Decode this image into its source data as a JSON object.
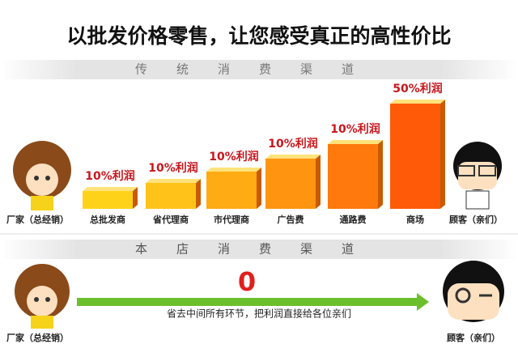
{
  "title": "以批发价格零售，让您感受真正的高性价比",
  "traditional": {
    "heading": "传统消费渠道",
    "maker": "厂家（总经销）",
    "customer": "顾客（亲们）",
    "stages": [
      {
        "label": "总批发商",
        "profit": "10%利润"
      },
      {
        "label": "省代理商",
        "profit": "10%利润"
      },
      {
        "label": "市代理商",
        "profit": "10%利润"
      },
      {
        "label": "广告费",
        "profit": "10%利润"
      },
      {
        "label": "通路费",
        "profit": "10%利润"
      },
      {
        "label": "商场",
        "profit": "50%利润"
      }
    ]
  },
  "store": {
    "heading": "本店消费渠道",
    "maker": "厂家（总经销）",
    "customer": "顾客（亲们）",
    "profit": "0",
    "note": "省去中间所有环节，把利润直接给各位亲们"
  }
}
